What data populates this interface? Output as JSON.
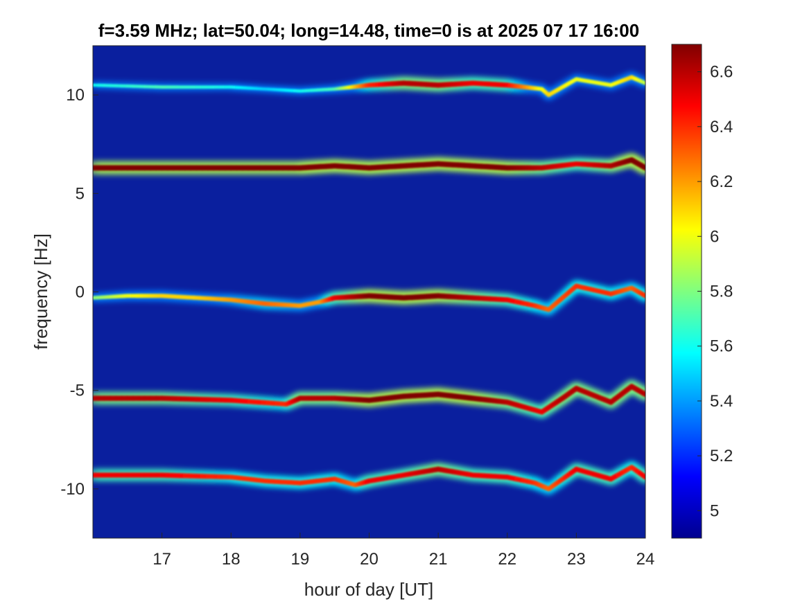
{
  "chart_data": {
    "type": "heatmap",
    "title": "f=3.59 MHz;  lat=50.04; long=14.48, time=0 is at 2025 07 17 16:00",
    "xlabel": "hour of day [UT]",
    "ylabel": "frequency [Hz]",
    "xlim": [
      16,
      24
    ],
    "ylim": [
      -12.5,
      12.5
    ],
    "xticks": [
      17,
      18,
      19,
      20,
      21,
      22,
      23,
      24
    ],
    "xtick_labels": [
      "17",
      "18",
      "19",
      "20",
      "21",
      "22",
      "23",
      "24"
    ],
    "yticks": [
      10,
      5,
      0,
      -5,
      -10
    ],
    "ytick_labels": [
      "10",
      "5",
      "0",
      "-5",
      "-10"
    ],
    "colormap": "jet",
    "clim": [
      4.9,
      6.7
    ],
    "colorbar_ticks": [
      6.6,
      6.4,
      6.2,
      6,
      5.8,
      5.6,
      5.4,
      5.2,
      5
    ],
    "colorbar_tick_labels": [
      "6.6",
      "6.4",
      "6.2",
      "6",
      "5.8",
      "5.6",
      "5.4",
      "5.2",
      "5"
    ],
    "background_color": "#0a1f9e",
    "series": [
      {
        "hour": [
          16.0,
          17.0,
          18.0,
          18.5,
          19.0,
          19.5,
          20.0,
          20.5,
          21.0,
          21.5,
          22.0,
          22.5,
          22.6,
          23.0,
          23.5,
          23.8,
          24.0
        ],
        "freq": [
          10.5,
          10.4,
          10.4,
          10.3,
          10.2,
          10.3,
          10.5,
          10.6,
          10.5,
          10.6,
          10.5,
          10.3,
          10.0,
          10.8,
          10.5,
          10.9,
          10.6
        ],
        "intensity": [
          5.6,
          5.7,
          5.6,
          5.5,
          5.6,
          5.7,
          6.4,
          6.6,
          6.6,
          6.5,
          6.5,
          6.0,
          6.1,
          6.0,
          6.0,
          6.1,
          5.9
        ]
      },
      {
        "hour": [
          16.0,
          17.0,
          18.0,
          19.0,
          19.5,
          20.0,
          20.5,
          21.0,
          21.5,
          22.0,
          22.5,
          23.0,
          23.5,
          23.8,
          24.0
        ],
        "freq": [
          6.3,
          6.3,
          6.3,
          6.3,
          6.4,
          6.3,
          6.4,
          6.5,
          6.4,
          6.3,
          6.3,
          6.5,
          6.4,
          6.7,
          6.3
        ],
        "intensity": [
          6.7,
          6.7,
          6.7,
          6.7,
          6.7,
          6.7,
          6.7,
          6.7,
          6.7,
          6.7,
          6.6,
          6.5,
          6.6,
          6.7,
          6.7
        ]
      },
      {
        "hour": [
          16.0,
          16.5,
          17.0,
          17.5,
          18.0,
          18.5,
          19.0,
          19.3,
          19.5,
          20.0,
          20.5,
          21.0,
          21.5,
          22.0,
          22.4,
          22.6,
          23.0,
          23.5,
          23.8,
          24.0
        ],
        "freq": [
          -0.3,
          -0.2,
          -0.2,
          -0.3,
          -0.4,
          -0.6,
          -0.7,
          -0.5,
          -0.3,
          -0.2,
          -0.3,
          -0.2,
          -0.3,
          -0.4,
          -0.7,
          -0.9,
          0.3,
          -0.1,
          0.2,
          -0.2
        ],
        "intensity": [
          5.8,
          6.0,
          6.1,
          6.1,
          6.2,
          6.3,
          6.2,
          6.2,
          6.5,
          6.7,
          6.7,
          6.7,
          6.6,
          6.5,
          6.4,
          6.3,
          6.4,
          6.4,
          6.3,
          6.4
        ]
      },
      {
        "hour": [
          16.0,
          17.0,
          18.0,
          18.8,
          19.0,
          19.5,
          20.0,
          20.5,
          21.0,
          21.5,
          22.0,
          22.5,
          22.8,
          23.0,
          23.5,
          23.8,
          24.0
        ],
        "freq": [
          -5.4,
          -5.4,
          -5.5,
          -5.7,
          -5.4,
          -5.4,
          -5.5,
          -5.3,
          -5.2,
          -5.4,
          -5.6,
          -6.1,
          -5.4,
          -4.9,
          -5.6,
          -4.8,
          -5.2
        ],
        "intensity": [
          6.6,
          6.6,
          6.5,
          6.4,
          6.6,
          6.6,
          6.7,
          6.7,
          6.7,
          6.7,
          6.6,
          6.5,
          6.6,
          6.6,
          6.6,
          6.6,
          6.6
        ]
      },
      {
        "hour": [
          16.0,
          17.0,
          18.0,
          18.5,
          19.0,
          19.5,
          19.8,
          20.0,
          20.5,
          21.0,
          21.5,
          22.0,
          22.4,
          22.6,
          23.0,
          23.5,
          23.8,
          24.0
        ],
        "freq": [
          -9.3,
          -9.3,
          -9.4,
          -9.6,
          -9.7,
          -9.5,
          -9.8,
          -9.6,
          -9.3,
          -9.0,
          -9.3,
          -9.4,
          -9.7,
          -10.0,
          -9.0,
          -9.5,
          -8.9,
          -9.4
        ],
        "intensity": [
          6.5,
          6.5,
          6.4,
          6.4,
          6.4,
          6.4,
          6.3,
          6.5,
          6.5,
          6.6,
          6.5,
          6.5,
          6.4,
          6.3,
          6.5,
          6.5,
          6.4,
          6.5
        ]
      }
    ]
  }
}
